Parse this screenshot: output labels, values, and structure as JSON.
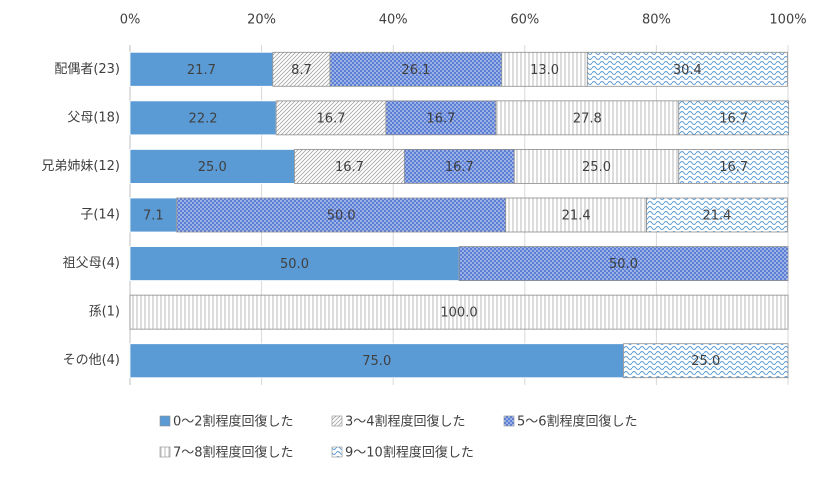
{
  "chart_data": {
    "type": "stacked-bar-horizontal",
    "categories": [
      "配偶者(23)",
      "父母(18)",
      "兄弟姉妹(12)",
      "子(14)",
      "祖父母(4)",
      "孫(1)",
      "その他(4)"
    ],
    "xlim": [
      0,
      100
    ],
    "xticks": [
      {
        "value": 0,
        "label": "0%"
      },
      {
        "value": 20,
        "label": "20%"
      },
      {
        "value": 40,
        "label": "40%"
      },
      {
        "value": 60,
        "label": "60%"
      },
      {
        "value": 80,
        "label": "80%"
      },
      {
        "value": 100,
        "label": "100%"
      }
    ],
    "grid": true,
    "legend": "bottom",
    "series": [
      {
        "name": "0～2割程度回復した",
        "color": "#5b9bd5",
        "pattern": "solid",
        "values": [
          21.7,
          22.2,
          25.0,
          7.1,
          50.0,
          0,
          75.0
        ],
        "value_labels": [
          "21.7",
          "22.2",
          "25.0",
          "7.1",
          "50.0",
          null,
          "75.0"
        ]
      },
      {
        "name": "3～4割程度回復した",
        "color": "#a6a6a6",
        "pattern": "diagonal",
        "values": [
          8.7,
          16.7,
          16.7,
          0,
          0,
          0,
          0
        ],
        "value_labels": [
          "8.7",
          "16.7",
          "16.7",
          null,
          null,
          null,
          null
        ]
      },
      {
        "name": "5～6割程度回復した",
        "color": "#5b7fd5",
        "pattern": "dots",
        "values": [
          26.1,
          16.7,
          16.7,
          50.0,
          50.0,
          0,
          0
        ],
        "value_labels": [
          "26.1",
          "16.7",
          "16.7",
          "50.0",
          "50.0",
          null,
          null
        ]
      },
      {
        "name": "7～8割程度回復した",
        "color": "#a6a6a6",
        "pattern": "vertical",
        "values": [
          13.0,
          27.8,
          25.0,
          21.4,
          0,
          100.0,
          0
        ],
        "value_labels": [
          "13.0",
          "27.8",
          "25.0",
          "21.4",
          null,
          "100.0",
          null
        ]
      },
      {
        "name": "9～10割程度回復した",
        "color": "#5b9bd5",
        "pattern": "wave",
        "values": [
          30.4,
          16.7,
          16.7,
          21.4,
          0,
          0,
          25.0
        ],
        "value_labels": [
          "30.4",
          "16.7",
          "16.7",
          "21.4",
          null,
          null,
          "25.0"
        ]
      }
    ]
  }
}
